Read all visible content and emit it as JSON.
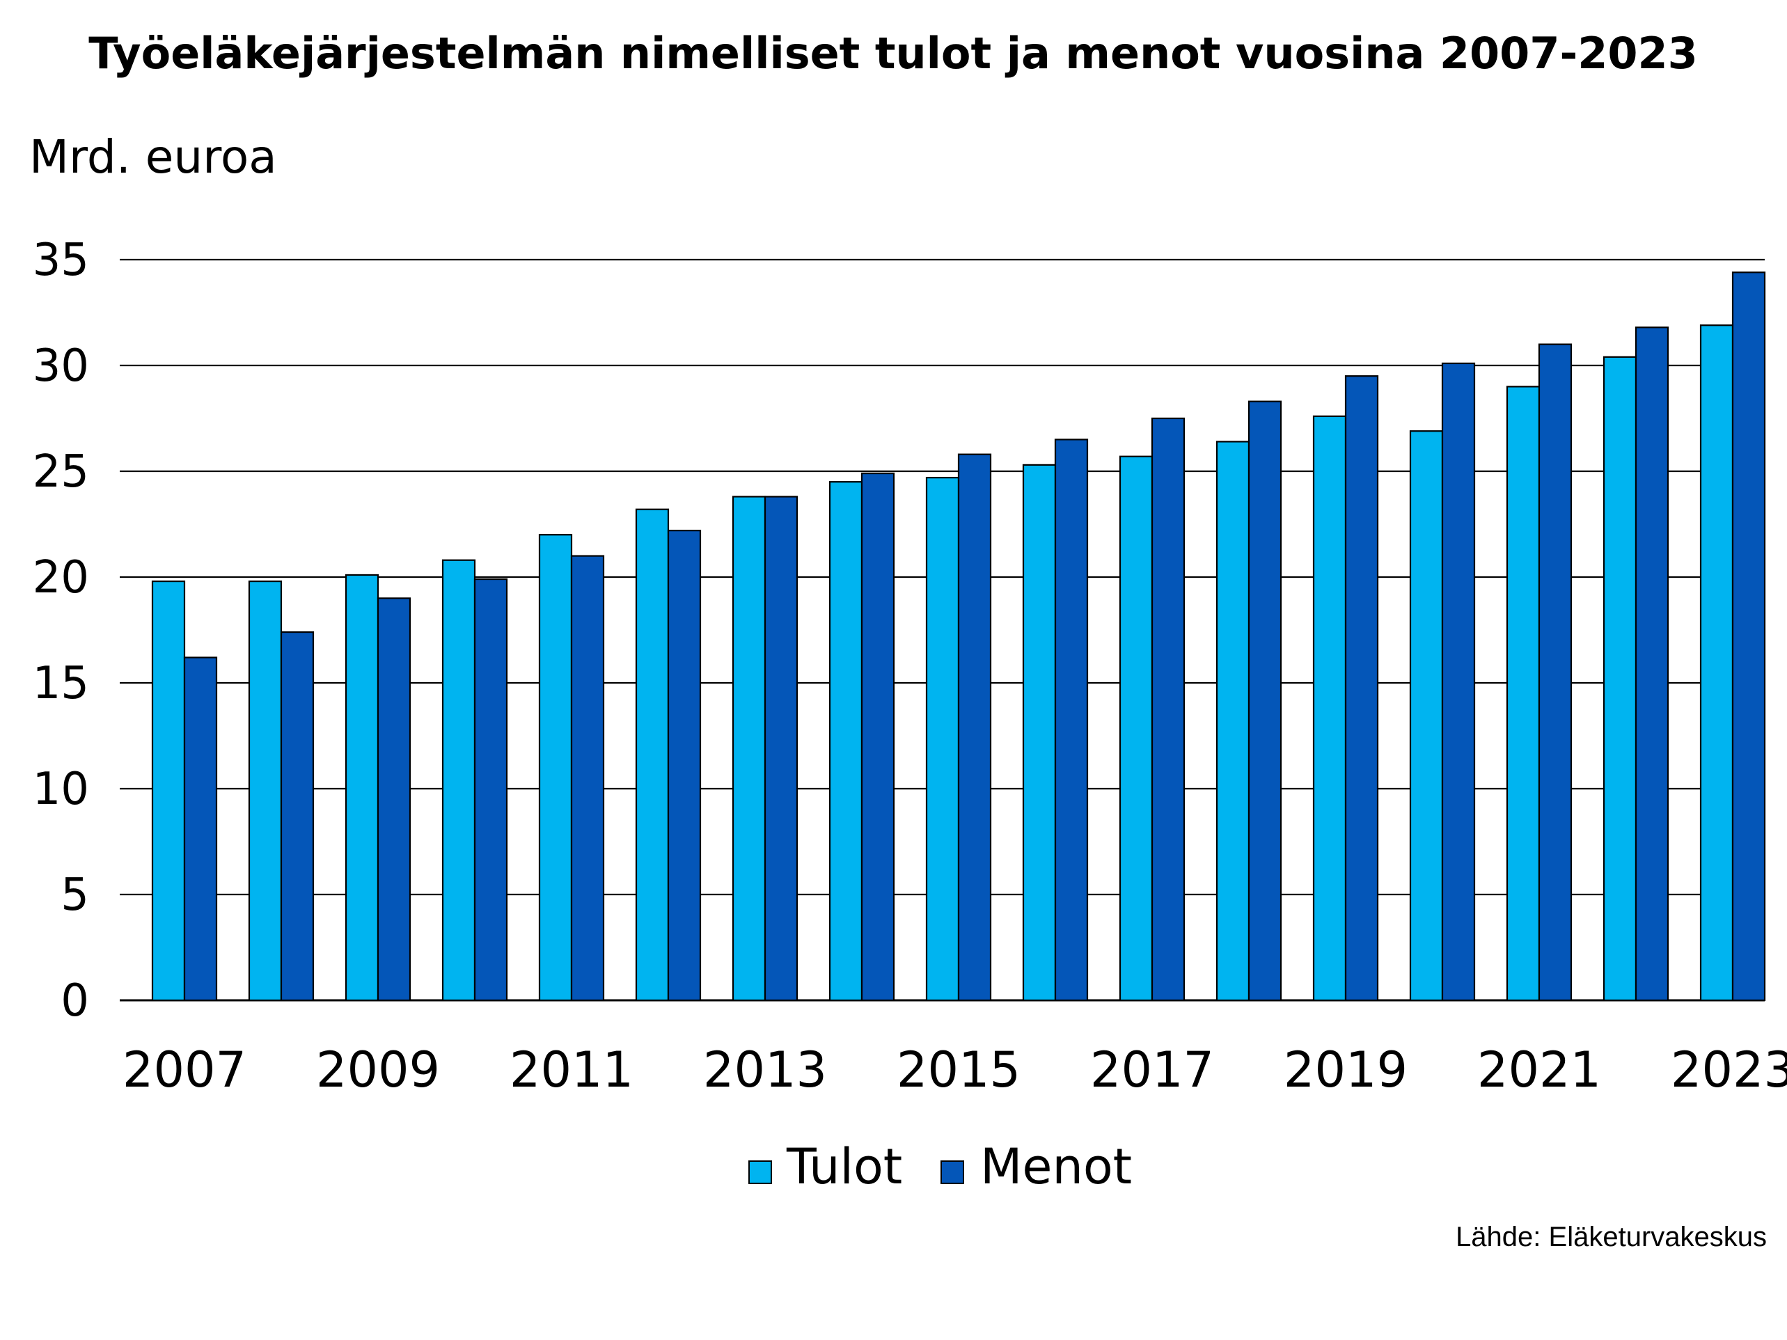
{
  "colors": {
    "tulot": "#00B4F0",
    "menot": "#0456B8",
    "axis": "#000000",
    "grid": "#000000",
    "bar_stroke": "#000000"
  },
  "chart_data": {
    "type": "bar",
    "title": "Työeläkejärjestelmän nimelliset tulot ja menot vuosina 2007-2023",
    "ylabel": "Mrd. euroa",
    "xlabel": "",
    "ylim": [
      0,
      35
    ],
    "yticks": [
      "0",
      "5",
      "10",
      "15",
      "20",
      "25",
      "30",
      "35"
    ],
    "grid": true,
    "legend_position": "bottom",
    "categories": [
      "2007",
      "2008",
      "2009",
      "2010",
      "2011",
      "2012",
      "2013",
      "2014",
      "2015",
      "2016",
      "2017",
      "2018",
      "2019",
      "2020",
      "2021",
      "2022",
      "2023"
    ],
    "xtick_labels": [
      "2007",
      "",
      "2009",
      "",
      "2011",
      "",
      "2013",
      "",
      "2015",
      "",
      "2017",
      "",
      "2019",
      "",
      "2021",
      "",
      "2023"
    ],
    "series": [
      {
        "name": "Tulot",
        "color": "#00B4F0",
        "values": [
          19.8,
          19.8,
          20.1,
          20.8,
          22.0,
          23.2,
          23.8,
          24.5,
          24.7,
          25.3,
          25.7,
          26.4,
          27.6,
          26.9,
          29.0,
          30.4,
          31.9
        ]
      },
      {
        "name": "Menot",
        "color": "#0456B8",
        "values": [
          16.2,
          17.4,
          19.0,
          19.9,
          21.0,
          22.2,
          23.8,
          24.9,
          25.8,
          26.5,
          27.5,
          28.3,
          29.5,
          30.1,
          31.0,
          31.8,
          34.4
        ]
      }
    ]
  },
  "source": "Lähde: Eläketurvakeskus"
}
